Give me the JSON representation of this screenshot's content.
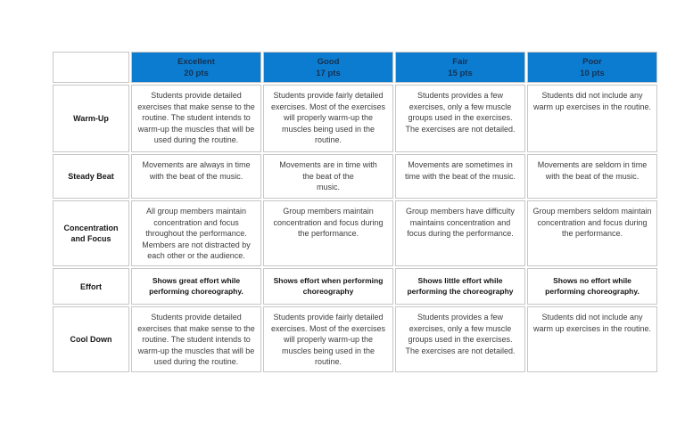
{
  "colors": {
    "header_bg": "#0c7cd0",
    "header_text": "#16304f",
    "border": "#c6c6c6",
    "body_text": "#3d3d3d",
    "label_text": "#161616",
    "page_bg": "#ffffff"
  },
  "table": {
    "header": {
      "corner_label": "",
      "columns": [
        {
          "label": "Excellent",
          "points": "20 pts"
        },
        {
          "label": "Good",
          "points": "17 pts"
        },
        {
          "label": "Fair",
          "points": "15 pts"
        },
        {
          "label": "Poor",
          "points": "10 pts"
        }
      ]
    },
    "rows": [
      {
        "label": "Warm-Up",
        "cells": [
          "Students provide detailed exercises that make sense to the routine. The student intends to warm-up the muscles that will be used during the routine.",
          "Students provide fairly detailed exercises. Most of the exercises will properly warm-up the muscles being used in the routine.",
          "Students provides a few exercises, only a few muscle groups used in the exercises. The exercises are not detailed.",
          "Students did not include any warm up exercises in the routine."
        ]
      },
      {
        "label": "Steady Beat",
        "cells": [
          "Movements are always in time with the beat of the music.",
          "Movements are in time with\nthe beat of the\nmusic.",
          "Movements are sometimes in time with the beat of the music.",
          "Movements are seldom in time with the beat of the music."
        ]
      },
      {
        "label": "Concentration and Focus",
        "cells": [
          "All group members maintain concentration and focus throughout the performance. Members are not distracted by each other or the audience.",
          "Group members maintain concentration and focus during the performance.",
          "Group members have difficulty maintains concentration and focus during the performance.",
          "Group members seldom maintain concentration and focus during the performance."
        ]
      },
      {
        "label": "Effort",
        "cells": [
          "Shows great effort while performing choreography.",
          "Shows effort when performing choreography",
          "Shows little effort while performing the choreography",
          "Shows no effort while performing choreography."
        ]
      },
      {
        "label": "Cool Down",
        "cells": [
          "Students provide detailed exercises that make sense to the routine. The student intends to warm-up the muscles that will be used during the routine.",
          "Students provide fairly detailed exercises. Most of the exercises will properly warm-up the muscles being used in the routine.",
          "Students provides a few exercises, only a few muscle groups used in the exercises. The exercises are not detailed.",
          "Students did not include any warm up exercises in the routine."
        ]
      }
    ]
  }
}
